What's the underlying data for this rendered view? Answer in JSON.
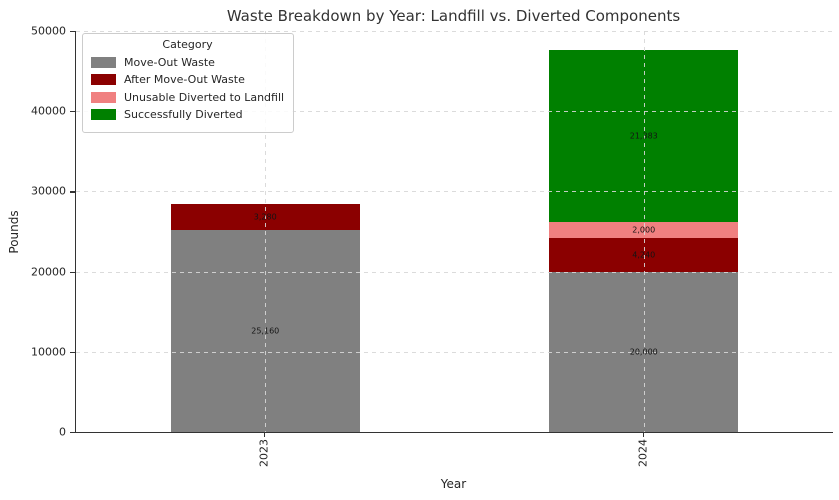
{
  "chart_data": {
    "type": "bar",
    "stacked": true,
    "title": "Waste Breakdown by Year: Landfill vs. Diverted Components",
    "xlabel": "Year",
    "ylabel": "Pounds",
    "ylim": [
      0,
      50000
    ],
    "yticks": [
      0,
      10000,
      20000,
      30000,
      40000,
      50000
    ],
    "ytick_labels": [
      "0",
      "10000",
      "20000",
      "30000",
      "40000",
      "50000"
    ],
    "categories": [
      "2023",
      "2024"
    ],
    "xtick_labels": [
      "2023",
      "2024"
    ],
    "legend": {
      "title": "Category",
      "position": "upper left"
    },
    "grid": {
      "style": "dashed",
      "on": true
    },
    "spines": [
      "left",
      "bottom"
    ],
    "series": [
      {
        "name": "Move-Out Waste",
        "color": "#808080",
        "values": [
          25160,
          20000
        ],
        "labels": [
          "25,160",
          "20,000"
        ]
      },
      {
        "name": "After Move-Out Waste",
        "color": "#8B0000",
        "values": [
          3280,
          4240
        ],
        "labels": [
          "3,280",
          "4,240"
        ]
      },
      {
        "name": "Unusable Diverted to Landfill",
        "color": "#F08080",
        "values": [
          0,
          2000
        ],
        "labels": [
          null,
          "2,000"
        ]
      },
      {
        "name": "Successfully Diverted",
        "color": "#008000",
        "values": [
          0,
          21383
        ],
        "labels": [
          null,
          "21,383"
        ]
      }
    ]
  }
}
